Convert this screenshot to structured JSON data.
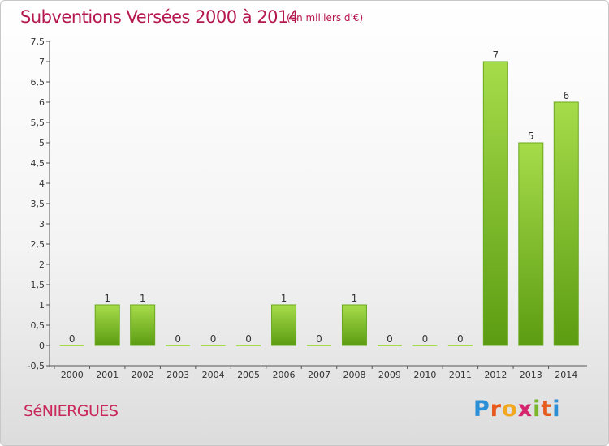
{
  "header": {
    "title": "Subventions Versées 2000 à 2014",
    "subtitle": "(en milliers d'€)"
  },
  "footer": {
    "commune": "SéNIERGUES",
    "logo_letters": [
      "P",
      "r",
      "o",
      "x",
      "i",
      "t",
      "i"
    ],
    "logo_colors": [
      "#2a8fd6",
      "#e65a1e",
      "#f0a81e",
      "#d6246e",
      "#7ab52b",
      "#e65a1e",
      "#2a8fd6"
    ]
  },
  "colors": {
    "bar_light": "#a6dc4a",
    "bar_dark": "#5c9c12",
    "title": "#b5174f"
  },
  "chart_data": {
    "type": "bar",
    "title": "Subventions Versées 2000 à 2014",
    "subtitle": "(en milliers d'€)",
    "categories": [
      "2000",
      "2001",
      "2002",
      "2003",
      "2004",
      "2005",
      "2006",
      "2007",
      "2008",
      "2009",
      "2010",
      "2011",
      "2012",
      "2013",
      "2014"
    ],
    "values": [
      0,
      1,
      1,
      0,
      0,
      0,
      1,
      0,
      1,
      0,
      0,
      0,
      7,
      5,
      6
    ],
    "value_labels": [
      "0",
      "1",
      "1",
      "0",
      "0",
      "0",
      "1",
      "0",
      "1",
      "0",
      "0",
      "0",
      "7",
      "5",
      "6"
    ],
    "ylim": [
      -0.5,
      7.5
    ],
    "yticks": [
      -0.5,
      0,
      0.5,
      1,
      1.5,
      2,
      2.5,
      3,
      3.5,
      4,
      4.5,
      5,
      5.5,
      6,
      6.5,
      7,
      7.5
    ],
    "ytick_labels": [
      "-0,5",
      "0",
      "0,5",
      "1",
      "1,5",
      "2",
      "2,5",
      "3",
      "3,5",
      "4",
      "4,5",
      "5",
      "5,5",
      "6",
      "6,5",
      "7",
      "7,5"
    ],
    "grid": false,
    "legend": "none"
  }
}
